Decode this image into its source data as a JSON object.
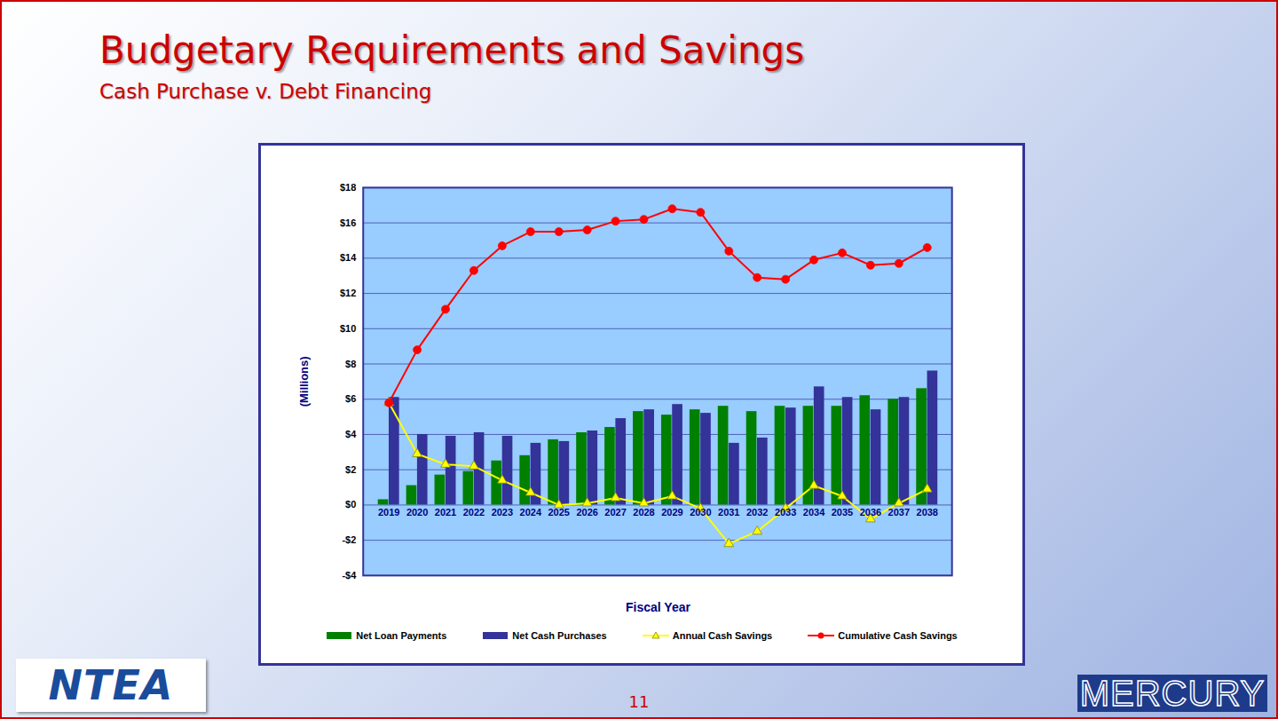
{
  "chart_data": {
    "type": "bar",
    "title": "Budgetary Requirements and Savings",
    "subtitle": "Cash Purchase v. Debt Financing",
    "x_label": "Fiscal Year",
    "y_label": "(Millions)",
    "categories": [
      "2019",
      "2020",
      "2021",
      "2022",
      "2023",
      "2024",
      "2025",
      "2026",
      "2027",
      "2028",
      "2029",
      "2030",
      "2031",
      "2032",
      "2033",
      "2034",
      "2035",
      "2036",
      "2037",
      "2038"
    ],
    "series": [
      {
        "name": "Net Loan Payments",
        "type": "bar",
        "color": "#008000",
        "values": [
          0.3,
          1.1,
          1.7,
          1.9,
          2.5,
          2.8,
          3.7,
          4.1,
          4.4,
          5.3,
          5.1,
          5.4,
          5.6,
          5.3,
          5.6,
          5.6,
          5.6,
          6.2,
          6.0,
          6.6
        ]
      },
      {
        "name": "Net Cash Purchases",
        "type": "bar",
        "color": "#333399",
        "values": [
          6.1,
          4.0,
          3.9,
          4.1,
          3.9,
          3.5,
          3.6,
          4.2,
          4.9,
          5.4,
          5.7,
          5.2,
          3.5,
          3.8,
          5.5,
          6.7,
          6.1,
          5.4,
          6.1,
          7.6
        ]
      },
      {
        "name": "Annual Cash Savings",
        "type": "line",
        "color": "#ffff00",
        "marker": "triangle",
        "values": [
          5.8,
          2.9,
          2.3,
          2.2,
          1.4,
          0.7,
          0.0,
          0.1,
          0.4,
          0.1,
          0.5,
          -0.2,
          -2.2,
          -1.5,
          -0.2,
          1.1,
          0.5,
          -0.8,
          0.1,
          0.9
        ]
      },
      {
        "name": "Cumulative Cash Savings",
        "type": "line",
        "color": "#ff0000",
        "marker": "circle",
        "values": [
          5.8,
          8.8,
          11.1,
          13.3,
          14.7,
          15.5,
          15.5,
          15.6,
          16.1,
          16.2,
          16.8,
          16.6,
          14.4,
          12.9,
          12.8,
          13.9,
          14.3,
          13.6,
          13.7,
          14.6
        ]
      }
    ],
    "ylim": [
      -4,
      18
    ],
    "yticks": [
      {
        "value": -4,
        "label": "-$4"
      },
      {
        "value": -2,
        "label": "-$2"
      },
      {
        "value": 0,
        "label": "$0"
      },
      {
        "value": 2,
        "label": "$2"
      },
      {
        "value": 4,
        "label": "$4"
      },
      {
        "value": 6,
        "label": "$6"
      },
      {
        "value": 8,
        "label": "$8"
      },
      {
        "value": 10,
        "label": "$10"
      },
      {
        "value": 12,
        "label": "$12"
      },
      {
        "value": 14,
        "label": "$14"
      },
      {
        "value": 16,
        "label": "$16"
      },
      {
        "value": 18,
        "label": "$18"
      }
    ],
    "grid": true,
    "legend": "bottom"
  },
  "page_number": "11",
  "logos": [
    "NTEA",
    "MERCURY"
  ]
}
